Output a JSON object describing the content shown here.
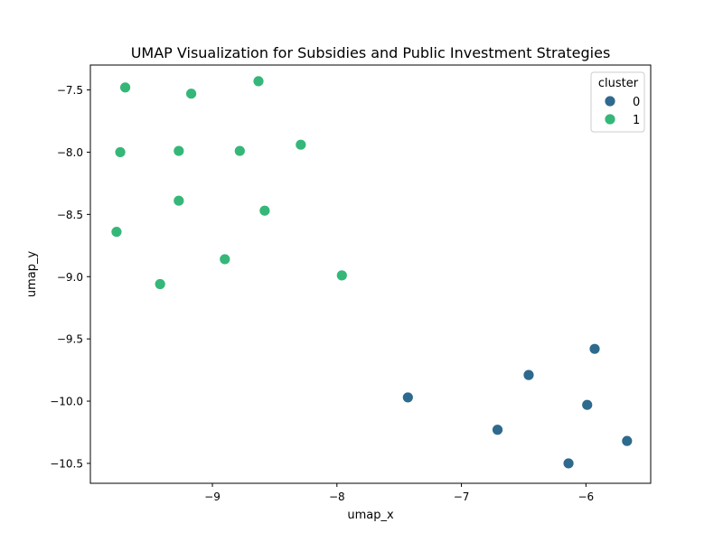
{
  "chart_data": {
    "type": "scatter",
    "title": "UMAP Visualization for Subsidies and Public Investment Strategies",
    "xlabel": "umap_x",
    "ylabel": "umap_y",
    "xlim": [
      -9.98,
      -5.48
    ],
    "ylim": [
      -10.66,
      -7.3
    ],
    "xticks": [
      -9,
      -8,
      -7,
      -6
    ],
    "yticks": [
      -10.5,
      -10.0,
      -9.5,
      -9.0,
      -8.5,
      -8.0,
      -7.5
    ],
    "xtick_labels": [
      "−9",
      "−8",
      "−7",
      "−6"
    ],
    "ytick_labels": [
      "−10.5",
      "−10.0",
      "−9.5",
      "−9.0",
      "−8.5",
      "−8.0",
      "−7.5"
    ],
    "grid": false,
    "legend": {
      "title": "cluster",
      "placement": "top-right",
      "entries": [
        {
          "label": "0",
          "color": "#2e6a8e"
        },
        {
          "label": "1",
          "color": "#35b779"
        }
      ]
    },
    "series": [
      {
        "name": "0",
        "color": "#2e6a8e",
        "points": [
          {
            "x": -5.93,
            "y": -9.58
          },
          {
            "x": -6.46,
            "y": -9.79
          },
          {
            "x": -7.43,
            "y": -9.97
          },
          {
            "x": -5.99,
            "y": -10.03
          },
          {
            "x": -6.71,
            "y": -10.23
          },
          {
            "x": -5.67,
            "y": -10.32
          },
          {
            "x": -6.14,
            "y": -10.5
          }
        ]
      },
      {
        "name": "1",
        "color": "#35b779",
        "points": [
          {
            "x": -8.63,
            "y": -7.43
          },
          {
            "x": -9.7,
            "y": -7.48
          },
          {
            "x": -9.17,
            "y": -7.53
          },
          {
            "x": -8.29,
            "y": -7.94
          },
          {
            "x": -8.78,
            "y": -7.99
          },
          {
            "x": -9.27,
            "y": -7.99
          },
          {
            "x": -9.74,
            "y": -8.0
          },
          {
            "x": -9.27,
            "y": -8.39
          },
          {
            "x": -8.58,
            "y": -8.47
          },
          {
            "x": -9.77,
            "y": -8.64
          },
          {
            "x": -8.9,
            "y": -8.86
          },
          {
            "x": -7.96,
            "y": -8.99
          },
          {
            "x": -9.42,
            "y": -9.06
          }
        ]
      }
    ]
  }
}
